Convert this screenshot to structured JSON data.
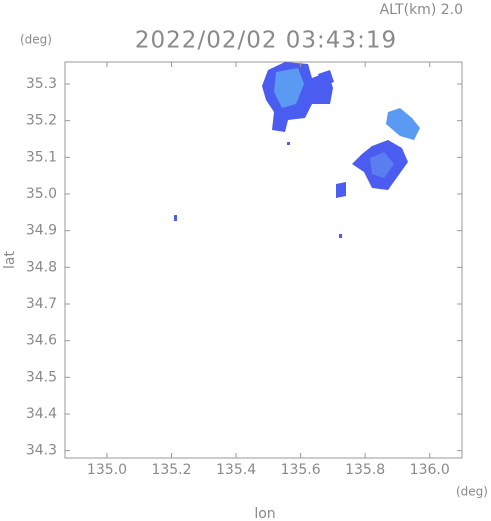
{
  "chart_data": {
    "type": "radar-map",
    "title": "2022/02/02 03:43:19",
    "altitude_label": "ALT(km) 2.0",
    "y_unit": "(deg)",
    "x_unit": "(deg)",
    "xlabel": "lon",
    "ylabel": "lat",
    "xlim": [
      134.87,
      136.1
    ],
    "xticks": [
      {
        "value": 135,
        "label": "135.0"
      },
      135.2,
      135.4,
      135.6,
      135.8,
      {
        "value": 136,
        "label": "136.0"
      }
    ],
    "ylim": [
      34.28,
      35.36
    ],
    "yticks": [
      34.3,
      34.4,
      34.5,
      34.6,
      34.7,
      34.8,
      34.9,
      {
        "value": 35,
        "label": "35.0"
      },
      35.1,
      35.2,
      35.3
    ]
  }
}
